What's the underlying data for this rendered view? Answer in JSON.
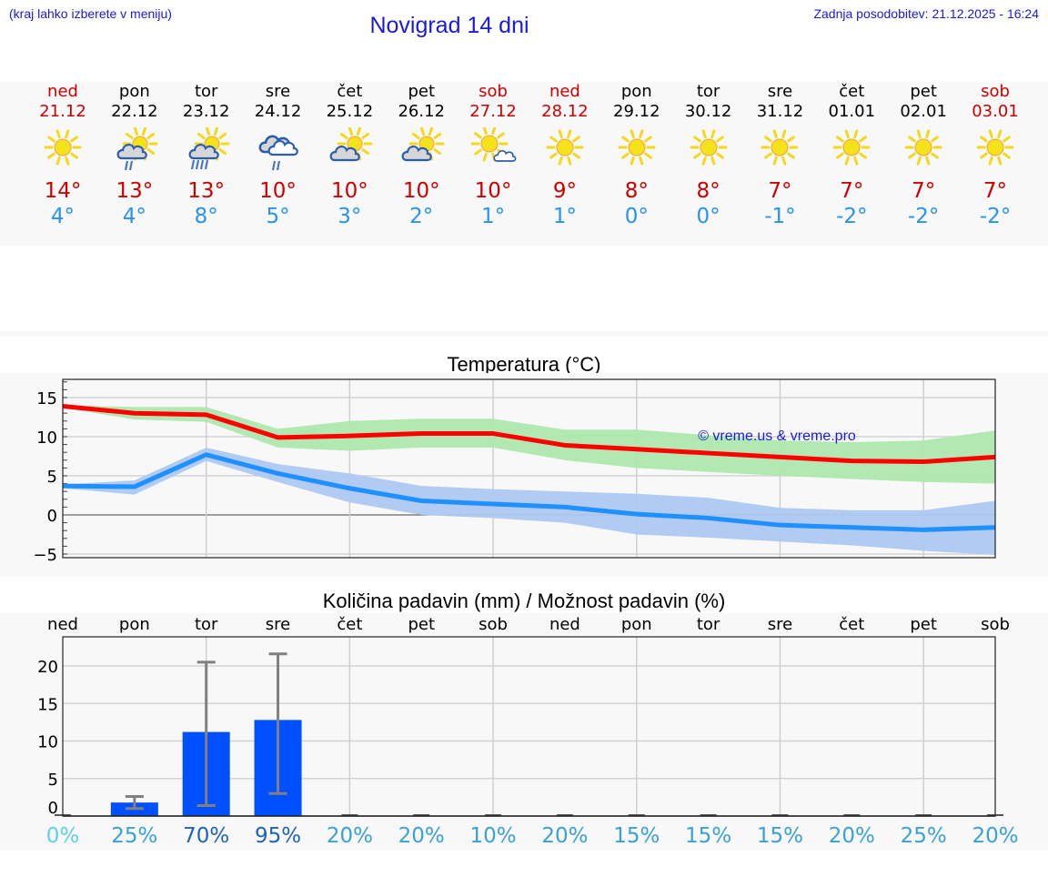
{
  "header": {
    "note": "(kraj lahko izberete v meniju)",
    "title": "Novigrad 14 dni",
    "last_update": "Zadnja posodobitev: 21.12.2025 - 16:24"
  },
  "days": [
    {
      "name": "ned",
      "date": "21.12",
      "weekend": true,
      "icon": "sun-icon",
      "tmax": "14°",
      "tmin": "4°"
    },
    {
      "name": "pon",
      "date": "22.12",
      "weekend": false,
      "icon": "sun-cloud-light-rain-icon",
      "tmax": "13°",
      "tmin": "4°"
    },
    {
      "name": "tor",
      "date": "23.12",
      "weekend": false,
      "icon": "sun-cloud-rain-icon",
      "tmax": "13°",
      "tmin": "8°"
    },
    {
      "name": "sre",
      "date": "24.12",
      "weekend": false,
      "icon": "overcast-light-rain-icon",
      "tmax": "10°",
      "tmin": "5°"
    },
    {
      "name": "čet",
      "date": "25.12",
      "weekend": false,
      "icon": "partly-cloudy-icon",
      "tmax": "10°",
      "tmin": "3°"
    },
    {
      "name": "pet",
      "date": "26.12",
      "weekend": false,
      "icon": "partly-cloudy-icon",
      "tmax": "10°",
      "tmin": "2°"
    },
    {
      "name": "sob",
      "date": "27.12",
      "weekend": true,
      "icon": "mostly-sunny-icon",
      "tmax": "10°",
      "tmin": "1°"
    },
    {
      "name": "ned",
      "date": "28.12",
      "weekend": true,
      "icon": "sun-icon",
      "tmax": "9°",
      "tmin": "1°"
    },
    {
      "name": "pon",
      "date": "29.12",
      "weekend": false,
      "icon": "sun-icon",
      "tmax": "8°",
      "tmin": "0°"
    },
    {
      "name": "tor",
      "date": "30.12",
      "weekend": false,
      "icon": "sun-icon",
      "tmax": "8°",
      "tmin": "0°"
    },
    {
      "name": "sre",
      "date": "31.12",
      "weekend": false,
      "icon": "sun-icon",
      "tmax": "7°",
      "tmin": "-1°"
    },
    {
      "name": "čet",
      "date": "01.01",
      "weekend": false,
      "icon": "sun-icon",
      "tmax": "7°",
      "tmin": "-2°"
    },
    {
      "name": "pet",
      "date": "02.01",
      "weekend": false,
      "icon": "sun-icon",
      "tmax": "7°",
      "tmin": "-2°"
    },
    {
      "name": "sob",
      "date": "03.01",
      "weekend": true,
      "icon": "sun-icon",
      "tmax": "7°",
      "tmin": "-2°"
    }
  ],
  "colors": {
    "header_blue": "#1a1adc",
    "weekend_red": "#cc0000",
    "tmax_line": "#ff0000",
    "tmax_band": "#aee8ae",
    "tmin_line": "#1e90ff",
    "tmin_band": "#aec8f2",
    "precip_bar": "#0050ff",
    "error_bar": "#808080"
  },
  "chart_data": [
    {
      "type": "line",
      "title": "Temperatura (°C)",
      "xlabel": "",
      "ylabel": "",
      "ylim": [
        -5.5,
        17.3
      ],
      "yticks": [
        -5,
        0,
        5,
        10,
        15
      ],
      "grid": true,
      "watermark": "© vreme.us & vreme.pro",
      "x": [
        "21.12",
        "22.12",
        "23.12",
        "24.12",
        "25.12",
        "26.12",
        "27.12",
        "28.12",
        "29.12",
        "30.12",
        "31.12",
        "01.01",
        "02.01",
        "03.01"
      ],
      "series": [
        {
          "name": "Tmax",
          "color": "#ff0000",
          "values": [
            13.9,
            13.0,
            12.8,
            9.9,
            10.1,
            10.4,
            10.4,
            8.9,
            8.4,
            7.9,
            7.4,
            6.9,
            6.8,
            7.4
          ]
        },
        {
          "name": "Tmax band low",
          "values": [
            13.7,
            12.2,
            11.9,
            8.6,
            8.2,
            8.6,
            8.6,
            7.0,
            6.0,
            5.5,
            5.0,
            4.6,
            4.2,
            4.0
          ]
        },
        {
          "name": "Tmax band high",
          "values": [
            14.0,
            13.8,
            13.8,
            11.0,
            12.0,
            12.3,
            12.3,
            10.9,
            10.9,
            10.2,
            9.5,
            9.3,
            9.5,
            10.8
          ]
        },
        {
          "name": "Tmin",
          "color": "#1e90ff",
          "values": [
            3.7,
            3.6,
            7.7,
            5.3,
            3.4,
            1.8,
            1.4,
            1.0,
            0.1,
            -0.4,
            -1.3,
            -1.6,
            -1.9,
            -1.6
          ]
        },
        {
          "name": "Tmin band low",
          "values": [
            3.4,
            2.6,
            6.9,
            4.2,
            1.6,
            0.0,
            -0.4,
            -1.0,
            -2.5,
            -2.9,
            -3.4,
            -3.9,
            -4.6,
            -5.1
          ]
        },
        {
          "name": "Tmin band high",
          "values": [
            3.9,
            4.4,
            8.6,
            6.5,
            5.3,
            3.7,
            3.3,
            3.0,
            2.7,
            2.2,
            0.9,
            0.6,
            0.6,
            1.8
          ]
        }
      ]
    },
    {
      "type": "bar",
      "title": "Količina padavin (mm) / Možnost padavin (%)",
      "xlabel": "",
      "ylabel": "",
      "ylim": [
        0,
        23.9
      ],
      "yticks": [
        0,
        5,
        10,
        15,
        20
      ],
      "grid": true,
      "categories": [
        "ned",
        "pon",
        "tor",
        "sre",
        "čet",
        "pet",
        "sob",
        "ned",
        "pon",
        "tor",
        "sre",
        "čet",
        "pet",
        "sob"
      ],
      "series": [
        {
          "name": "Količina padavin (mm)",
          "color": "#0050ff",
          "values": [
            0,
            1.8,
            11.2,
            12.8,
            0,
            0,
            0,
            0,
            0,
            0,
            0,
            0,
            0,
            0
          ]
        }
      ],
      "error_bars": [
        null,
        [
          1.0,
          2.6
        ],
        [
          1.4,
          20.5
        ],
        [
          3.0,
          21.6
        ],
        null,
        null,
        null,
        null,
        null,
        null,
        null,
        null,
        null,
        null
      ],
      "probability_pct": [
        "0%",
        "25%",
        "70%",
        "95%",
        "20%",
        "20%",
        "10%",
        "20%",
        "15%",
        "15%",
        "15%",
        "20%",
        "25%",
        "20%"
      ],
      "probability_colors": [
        "#5ed0e8",
        "#3aa0d8",
        "#1d63b8",
        "#1d63b8",
        "#3aa0d8",
        "#3aa0d8",
        "#3aa0d8",
        "#3aa0d8",
        "#3aa0d8",
        "#3aa0d8",
        "#3aa0d8",
        "#3aa0d8",
        "#3aa0d8",
        "#3aa0d8"
      ]
    }
  ]
}
